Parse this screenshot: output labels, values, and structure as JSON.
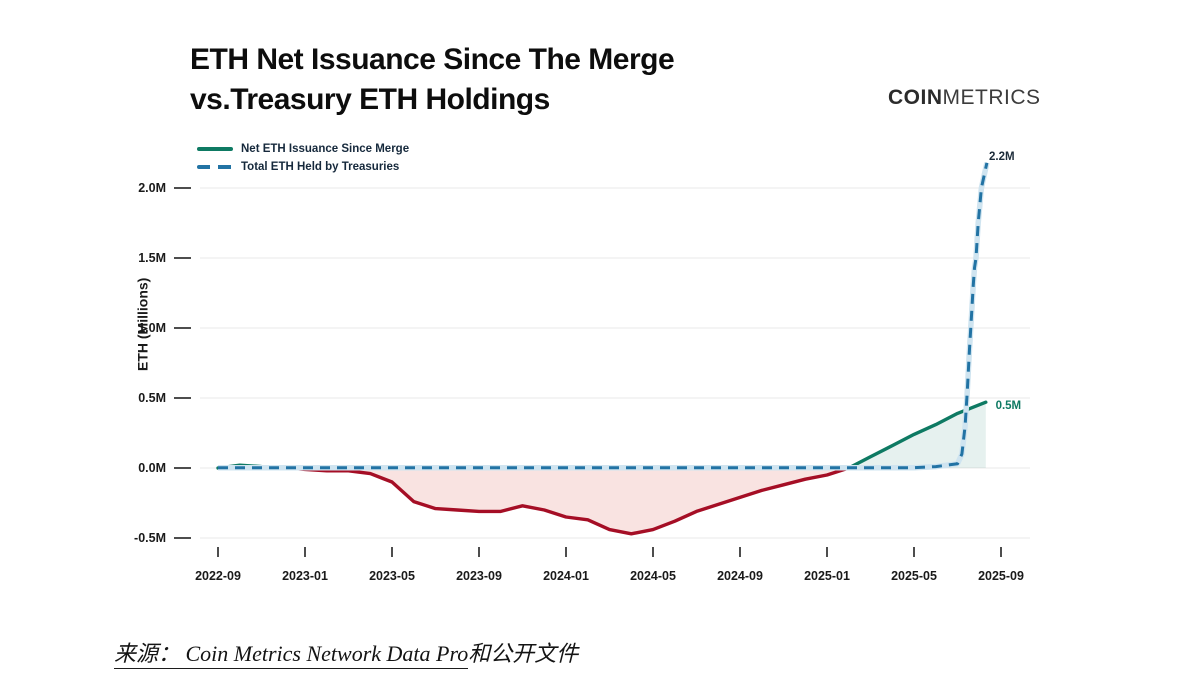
{
  "header": {
    "title_line1": "ETH Net Issuance Since The Merge",
    "title_line2": "vs.Treasury ETH Holdings"
  },
  "logo": {
    "bold": "COIN",
    "light": "METRICS"
  },
  "source": {
    "underlined": "来源： Coin Metrics Network Data Pro",
    "suffix": "和公开文件"
  },
  "chart_data": {
    "type": "line",
    "title": "ETH Net Issuance Since The Merge vs.Treasury ETH Holdings",
    "ylabel": "ETH (Millions)",
    "x_start_label": "2022-09",
    "x_tick_labels": [
      "2022-09",
      "2023-01",
      "2023-05",
      "2023-09",
      "2024-01",
      "2024-05",
      "2024-09",
      "2025-01",
      "2025-05",
      "2025-09"
    ],
    "x_tick_month_indices": [
      0,
      4,
      8,
      12,
      16,
      20,
      24,
      28,
      32,
      36
    ],
    "y_ticks": [
      {
        "label": "-0.5M",
        "value": -0.5
      },
      {
        "label": "0.0M",
        "value": 0.0
      },
      {
        "label": "0.5M",
        "value": 0.5
      },
      {
        "label": "1.0M",
        "value": 1.0
      },
      {
        "label": "1.5M",
        "value": 1.5
      },
      {
        "label": "2.0M",
        "value": 2.0
      }
    ],
    "ylim": [
      -0.7,
      2.35
    ],
    "grid": true,
    "legend_position": "top-left",
    "colors": {
      "issuance_positive": "#0e7a63",
      "issuance_negative": "#a50e25",
      "fill_positive": "rgba(14,122,99,0.10)",
      "fill_negative": "rgba(220,88,78,0.17)",
      "treasury": "#2273a4",
      "treasury_halo": "#cfe4f0",
      "gridline": "#e8e8e8",
      "tick": "#4d4d4d",
      "axis_text": "#1a1a1a"
    },
    "series": [
      {
        "name": "Net ETH Issuance Since Merge",
        "style": "solid",
        "points": [
          [
            0,
            0.0
          ],
          [
            1,
            0.02
          ],
          [
            2,
            0.01
          ],
          [
            3,
            0.005
          ],
          [
            4,
            -0.01
          ],
          [
            5,
            -0.02
          ],
          [
            6,
            -0.02
          ],
          [
            7,
            -0.04
          ],
          [
            8,
            -0.1
          ],
          [
            9,
            -0.24
          ],
          [
            10,
            -0.29
          ],
          [
            11,
            -0.3
          ],
          [
            12,
            -0.31
          ],
          [
            13,
            -0.31
          ],
          [
            14,
            -0.27
          ],
          [
            15,
            -0.3
          ],
          [
            16,
            -0.35
          ],
          [
            17,
            -0.37
          ],
          [
            18,
            -0.44
          ],
          [
            19,
            -0.47
          ],
          [
            20,
            -0.44
          ],
          [
            21,
            -0.38
          ],
          [
            22,
            -0.31
          ],
          [
            23,
            -0.26
          ],
          [
            24,
            -0.21
          ],
          [
            25,
            -0.16
          ],
          [
            26,
            -0.12
          ],
          [
            27,
            -0.08
          ],
          [
            28,
            -0.05
          ],
          [
            29,
            0.0
          ],
          [
            30,
            0.08
          ],
          [
            31,
            0.16
          ],
          [
            32,
            0.24
          ],
          [
            33,
            0.31
          ],
          [
            34,
            0.39
          ],
          [
            35.3,
            0.47
          ]
        ]
      },
      {
        "name": "Total ETH Held by Treasuries",
        "style": "dashed",
        "points": [
          [
            0,
            0.002
          ],
          [
            32,
            0.002
          ],
          [
            33,
            0.01
          ],
          [
            34,
            0.03
          ],
          [
            34.2,
            0.1
          ],
          [
            34.35,
            0.3
          ],
          [
            34.45,
            0.55
          ],
          [
            34.55,
            0.85
          ],
          [
            34.65,
            1.1
          ],
          [
            34.72,
            1.3
          ],
          [
            34.78,
            1.43
          ],
          [
            34.85,
            1.5
          ],
          [
            34.95,
            1.75
          ],
          [
            35.1,
            2.0
          ],
          [
            35.35,
            2.18
          ]
        ]
      }
    ],
    "annotations": [
      {
        "text": "2.2M",
        "month": 35.45,
        "value": 2.23,
        "color": "#1c2b39",
        "anchor": "start"
      },
      {
        "text": "0.5M",
        "month": 35.75,
        "value": 0.45,
        "color": "#0e7a63",
        "anchor": "start"
      }
    ]
  }
}
